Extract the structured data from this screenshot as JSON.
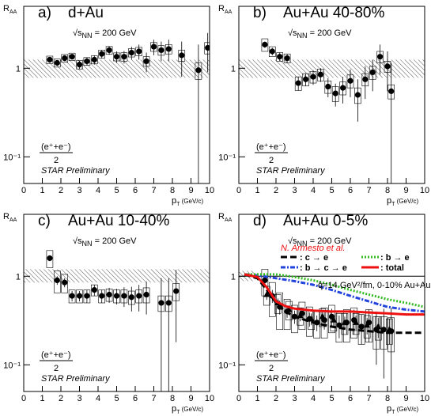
{
  "chart_data": [
    {
      "type": "scatter",
      "label": "a)",
      "title": "d+Au",
      "energy": {
        "pre": "√s",
        "sub": "NN",
        "post": " = 200 GeV"
      },
      "fraction": {
        "numerator": "(e⁺+e⁻)",
        "denominator": "2"
      },
      "note": "STAR Preliminary",
      "ylabel": {
        "main": "R",
        "sub": "AA"
      },
      "xlabel": {
        "main": "p",
        "sub": "T",
        "rest": " (GeV/c)"
      },
      "xlim": [
        0,
        10
      ],
      "xticks": [
        0,
        1,
        2,
        3,
        4,
        5,
        6,
        7,
        8,
        9,
        10
      ],
      "ylim": [
        0.05,
        5
      ],
      "yticks": [
        {
          "value": 0.1,
          "label": "10⁻¹"
        },
        1
      ],
      "log_y": true,
      "norm_band": [
        0.78,
        1.25
      ],
      "series": [
        {
          "marker": "circle",
          "color": "#000000",
          "x": [
            1.4,
            1.8,
            2.2,
            2.6,
            3.0,
            3.4,
            3.8,
            4.2,
            4.6,
            5.0,
            5.4,
            5.8,
            6.2,
            6.6,
            7.0,
            7.4,
            7.8,
            8.5,
            9.4,
            9.9
          ],
          "values": [
            1.25,
            1.15,
            1.3,
            1.35,
            1.1,
            1.2,
            1.25,
            1.45,
            1.6,
            1.35,
            1.35,
            1.5,
            1.55,
            1.2,
            1.75,
            1.6,
            1.65,
            1.4,
            0.95,
            1.7
          ],
          "errors": [
            0.08,
            0.08,
            0.1,
            0.1,
            0.12,
            0.12,
            0.15,
            0.15,
            0.18,
            0.2,
            0.22,
            0.25,
            0.3,
            0.3,
            0.35,
            0.4,
            0.45,
            0.6,
            0.9,
            0.8
          ],
          "sys": [
            0.12,
            0.12,
            0.13,
            0.13,
            0.12,
            0.12,
            0.13,
            0.15,
            0.16,
            0.14,
            0.15,
            0.16,
            0.17,
            0.15,
            0.2,
            0.2,
            0.2,
            0.2,
            0.2,
            0.25
          ]
        }
      ]
    },
    {
      "type": "scatter",
      "label": "b)",
      "title": "Au+Au 40-80%",
      "energy": {
        "pre": "√s",
        "sub": "NN",
        "post": " = 200 GeV"
      },
      "fraction": {
        "numerator": "(e⁺+e⁻)",
        "denominator": "2"
      },
      "note": "STAR Preliminary",
      "ylabel": {
        "main": "R",
        "sub": "AA"
      },
      "xlabel": {
        "main": "p",
        "sub": "T",
        "rest": " (GeV/c)"
      },
      "xlim": [
        0,
        10
      ],
      "xticks": [
        0,
        1,
        2,
        3,
        4,
        5,
        6,
        7,
        8,
        9,
        10
      ],
      "ylim": [
        0.05,
        5
      ],
      "yticks": [
        {
          "value": 0.1,
          "label": "10⁻¹"
        },
        1
      ],
      "log_y": true,
      "norm_band": [
        0.78,
        1.25
      ],
      "series": [
        {
          "marker": "circle",
          "color": "#000000",
          "x": [
            1.4,
            1.8,
            2.2,
            2.6,
            3.2,
            3.6,
            4.0,
            4.4,
            4.8,
            5.2,
            5.6,
            6.0,
            6.4,
            6.8,
            7.2,
            7.6,
            8.0,
            8.2
          ],
          "values": [
            1.85,
            1.55,
            1.35,
            1.3,
            0.68,
            0.75,
            0.8,
            0.85,
            0.62,
            0.52,
            0.6,
            0.72,
            0.5,
            0.75,
            0.9,
            1.35,
            1.05,
            0.55
          ],
          "errors": [
            0.15,
            0.15,
            0.15,
            0.15,
            0.12,
            0.12,
            0.15,
            0.15,
            0.15,
            0.15,
            0.2,
            0.25,
            0.25,
            0.3,
            0.35,
            0.5,
            0.5,
            0.6
          ],
          "sys": [
            0.3,
            0.2,
            0.15,
            0.15,
            0.12,
            0.12,
            0.12,
            0.13,
            0.1,
            0.1,
            0.1,
            0.12,
            0.1,
            0.12,
            0.15,
            0.2,
            0.15,
            0.1
          ]
        }
      ]
    },
    {
      "type": "scatter",
      "label": "c)",
      "title": "Au+Au 10-40%",
      "energy": {
        "pre": "√s",
        "sub": "NN",
        "post": " = 200 GeV"
      },
      "fraction": {
        "numerator": "(e⁺+e⁻)",
        "denominator": "2"
      },
      "note": "STAR Preliminary",
      "ylabel": {
        "main": "R",
        "sub": "AA"
      },
      "xlabel": {
        "main": "p",
        "sub": "T",
        "rest": " (GeV/c)"
      },
      "xlim": [
        0,
        10
      ],
      "xticks": [
        0,
        1,
        2,
        3,
        4,
        5,
        6,
        7,
        8,
        9,
        10
      ],
      "ylim": [
        0.05,
        5
      ],
      "yticks": [
        {
          "value": 0.1,
          "label": "10⁻¹"
        },
        1
      ],
      "log_y": true,
      "norm_band": [
        0.85,
        1.2
      ],
      "series": [
        {
          "marker": "circle",
          "color": "#000000",
          "x": [
            1.4,
            1.8,
            2.2,
            2.6,
            3.0,
            3.4,
            3.8,
            4.2,
            4.6,
            5.0,
            5.4,
            5.8,
            6.2,
            6.6,
            7.4,
            7.8,
            8.2
          ],
          "values": [
            1.6,
            0.9,
            0.85,
            0.6,
            0.6,
            0.6,
            0.7,
            0.6,
            0.62,
            0.6,
            0.6,
            0.58,
            0.6,
            0.62,
            0.5,
            0.5,
            0.68
          ],
          "errors": [
            0.12,
            0.1,
            0.1,
            0.08,
            0.08,
            0.1,
            0.1,
            0.1,
            0.12,
            0.12,
            0.15,
            0.18,
            0.2,
            0.25,
            0.45,
            0.45,
            0.5
          ],
          "sys": [
            0.35,
            0.25,
            0.2,
            0.1,
            0.1,
            0.1,
            0.1,
            0.1,
            0.1,
            0.1,
            0.1,
            0.1,
            0.1,
            0.12,
            0.1,
            0.1,
            0.15
          ]
        }
      ]
    },
    {
      "type": "scatter",
      "label": "d)",
      "title": "Au+Au 0-5%",
      "energy": {
        "pre": "√s",
        "sub": "NN",
        "post": " = 200 GeV"
      },
      "fraction": {
        "numerator": "(e⁺+e⁻)",
        "denominator": "2"
      },
      "note": "STAR Preliminary",
      "ylabel": {
        "main": "R",
        "sub": "AA"
      },
      "xlabel": {
        "main": "p",
        "sub": "T",
        "rest": " (GeV/c)"
      },
      "xlim": [
        0,
        10
      ],
      "xticks": [
        0,
        1,
        2,
        3,
        4,
        5,
        6,
        7,
        8,
        9,
        10
      ],
      "ylim": [
        0.05,
        5
      ],
      "yticks": [
        {
          "value": 0.1,
          "label": "10⁻¹"
        },
        1
      ],
      "log_y": true,
      "norm_band": [
        0.88,
        1.15
      ],
      "reference_line": 1,
      "model": "N. Armesto et al.",
      "model_params": "q̂=14 GeV²/fm, 0-10% Au+Au",
      "series": [
        {
          "marker": "circle",
          "color": "#000000",
          "x": [
            1.4,
            1.8,
            2.2,
            2.6,
            3.0,
            3.4,
            3.8,
            4.2,
            4.6,
            5.0,
            5.4,
            5.8,
            6.2,
            6.6,
            7.0,
            7.4,
            7.8,
            8.2
          ],
          "values": [
            0.9,
            0.6,
            0.45,
            0.4,
            0.35,
            0.38,
            0.33,
            0.3,
            0.32,
            0.35,
            0.28,
            0.3,
            0.32,
            0.27,
            0.3,
            0.25,
            0.25,
            0.24
          ],
          "errors": [
            0.15,
            0.1,
            0.08,
            0.06,
            0.06,
            0.06,
            0.06,
            0.06,
            0.07,
            0.08,
            0.08,
            0.08,
            0.1,
            0.1,
            0.12,
            0.15,
            0.18,
            0.2
          ],
          "sys": [
            0.3,
            0.25,
            0.2,
            0.15,
            0.12,
            0.13,
            0.12,
            0.1,
            0.12,
            0.12,
            0.1,
            0.12,
            0.12,
            0.1,
            0.12,
            0.1,
            0.1,
            0.1
          ]
        },
        {
          "marker": "triangle",
          "color": "#000000",
          "x": [
            1.5,
            2.1,
            2.7,
            3.3,
            3.9,
            4.5,
            5.1,
            5.7,
            6.3,
            6.9,
            7.5,
            8.1
          ],
          "values": [
            0.62,
            0.5,
            0.42,
            0.36,
            0.33,
            0.35,
            0.32,
            0.3,
            0.3,
            0.28,
            0.27,
            0.25
          ],
          "errors": [
            0.08,
            0.06,
            0.05,
            0.05,
            0.05,
            0.05,
            0.05,
            0.05,
            0.06,
            0.06,
            0.07,
            0.08
          ],
          "sys": [
            0.15,
            0.12,
            0.1,
            0.08,
            0.08,
            0.08,
            0.08,
            0.08,
            0.08,
            0.08,
            0.08,
            0.08
          ]
        }
      ],
      "curves": [
        {
          "name": ": c → e",
          "color": "#000000",
          "dash": "8,4",
          "x": [
            0.3,
            1,
            1.5,
            2,
            2.5,
            3,
            4,
            5,
            6,
            7,
            8,
            9,
            10
          ],
          "values": [
            1.05,
            0.95,
            0.7,
            0.5,
            0.4,
            0.35,
            0.3,
            0.27,
            0.25,
            0.24,
            0.23,
            0.23,
            0.23
          ]
        },
        {
          "name": ": b → c → e",
          "color": "#2244dd",
          "dash": "6,2,2,2",
          "x": [
            0.3,
            1,
            2,
            3,
            4,
            5,
            6,
            7,
            8,
            9,
            10
          ],
          "values": [
            1.05,
            1.02,
            0.95,
            0.88,
            0.8,
            0.7,
            0.6,
            0.52,
            0.45,
            0.42,
            0.4
          ]
        },
        {
          "name": ": b → e",
          "color": "#33bb22",
          "dash": "2,2",
          "x": [
            0.3,
            1,
            2,
            3,
            4,
            5,
            6,
            7,
            8,
            9,
            10
          ],
          "values": [
            1.05,
            1.05,
            1.05,
            0.98,
            0.9,
            0.8,
            0.7,
            0.62,
            0.55,
            0.5,
            0.45
          ]
        },
        {
          "name": ": total",
          "color": "#ee1111",
          "dash": "",
          "x": [
            0.3,
            1,
            1.5,
            2,
            2.5,
            3,
            4,
            5,
            6,
            7,
            8,
            9,
            10
          ],
          "values": [
            1.05,
            0.98,
            0.75,
            0.52,
            0.46,
            0.43,
            0.41,
            0.4,
            0.4,
            0.39,
            0.38,
            0.37,
            0.37
          ]
        }
      ]
    }
  ]
}
